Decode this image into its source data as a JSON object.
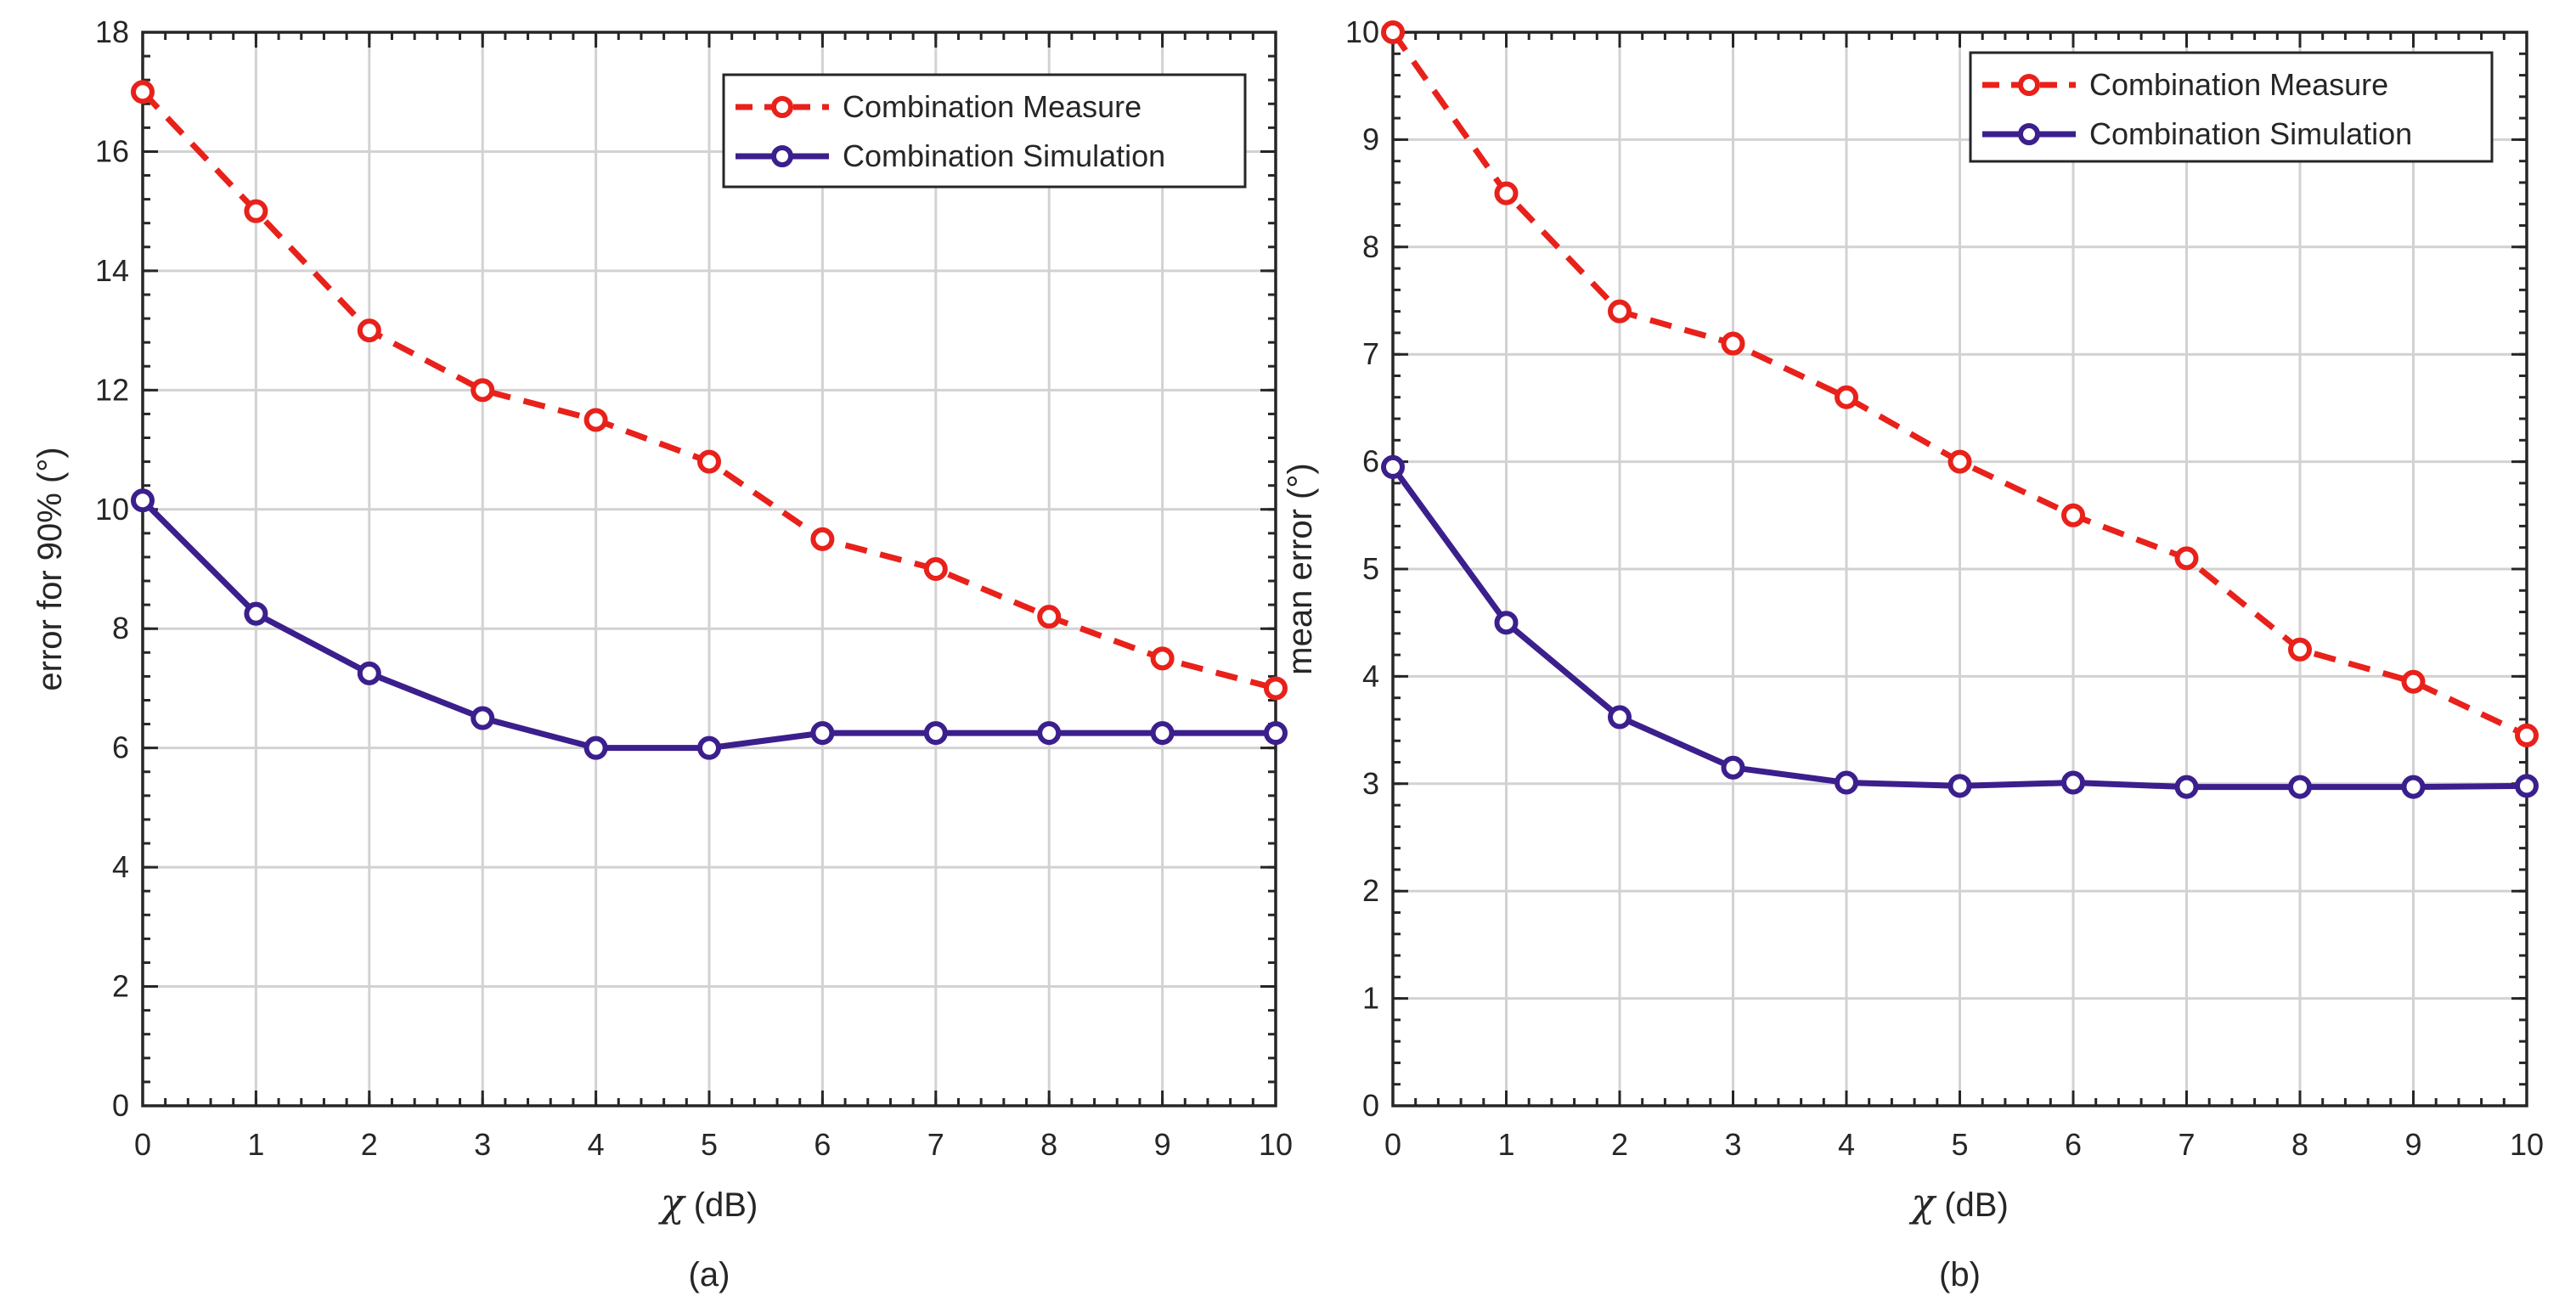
{
  "chart_data": [
    {
      "type": "line",
      "caption": "(a)",
      "ylabel": "error for 90% (°)",
      "xlabel_symbol": "χ",
      "xlabel_unit": "(dB)",
      "x": [
        0,
        1,
        2,
        3,
        4,
        5,
        6,
        7,
        8,
        9,
        10
      ],
      "xlim": [
        0,
        10
      ],
      "ylim": [
        0,
        18
      ],
      "xticks": [
        0,
        1,
        2,
        3,
        4,
        5,
        6,
        7,
        8,
        9,
        10
      ],
      "yticks": [
        0,
        2,
        4,
        6,
        8,
        10,
        12,
        14,
        16,
        18
      ],
      "grid": true,
      "legend_position": "top-right",
      "series": [
        {
          "name": "Combination Measure",
          "color": "#e8211b",
          "style": "dashed",
          "values": [
            17,
            15,
            13,
            12,
            11.5,
            10.8,
            9.5,
            9,
            8.2,
            7.5,
            7
          ]
        },
        {
          "name": "Combination Simulation",
          "color": "#3b1f8c",
          "style": "solid",
          "values": [
            10.15,
            8.25,
            7.25,
            6.5,
            6,
            6,
            6.25,
            6.25,
            6.25,
            6.25,
            6.25
          ]
        }
      ]
    },
    {
      "type": "line",
      "caption": "(b)",
      "ylabel": "mean error (°)",
      "xlabel_symbol": "χ",
      "xlabel_unit": "(dB)",
      "x": [
        0,
        1,
        2,
        3,
        4,
        5,
        6,
        7,
        8,
        9,
        10
      ],
      "xlim": [
        0,
        10
      ],
      "ylim": [
        0,
        10
      ],
      "xticks": [
        0,
        1,
        2,
        3,
        4,
        5,
        6,
        7,
        8,
        9,
        10
      ],
      "yticks": [
        0,
        1,
        2,
        3,
        4,
        5,
        6,
        7,
        8,
        9,
        10
      ],
      "grid": true,
      "legend_position": "top-right",
      "series": [
        {
          "name": "Combination Measure",
          "color": "#e8211b",
          "style": "dashed",
          "values": [
            10,
            8.5,
            7.4,
            7.1,
            6.6,
            6,
            5.5,
            5.1,
            4.25,
            3.95,
            3.45
          ]
        },
        {
          "name": "Combination Simulation",
          "color": "#3b1f8c",
          "style": "solid",
          "values": [
            5.95,
            4.5,
            3.62,
            3.15,
            3.01,
            2.98,
            3.01,
            2.97,
            2.97,
            2.97,
            2.98
          ]
        }
      ]
    }
  ]
}
